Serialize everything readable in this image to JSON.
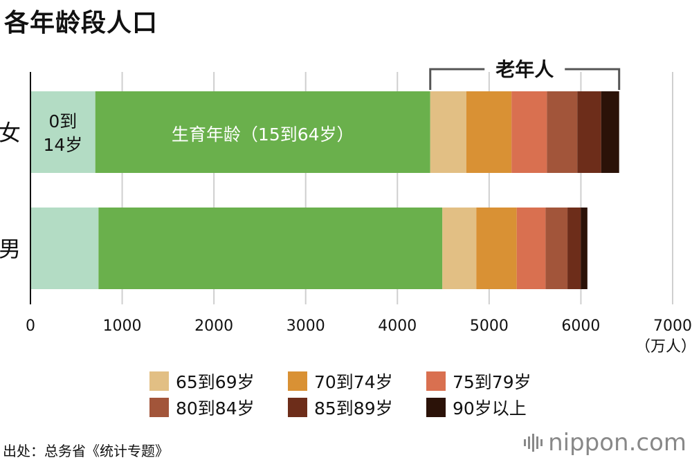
{
  "title": "各年龄段人口",
  "chart_data": {
    "type": "bar",
    "orientation": "horizontal",
    "stacked": true,
    "title": "各年龄段人口",
    "categories": [
      "女",
      "男"
    ],
    "series": [
      {
        "name": "0到14岁",
        "color": "#b3dcc4",
        "values": [
          707,
          742
        ]
      },
      {
        "name": "生育年龄（15到64岁）",
        "color": "#6ab04c",
        "values": [
          3651,
          3748
        ]
      },
      {
        "name": "65到69岁",
        "color": "#e2bf84",
        "values": [
          394,
          370
        ]
      },
      {
        "name": "70到74岁",
        "color": "#d99134",
        "values": [
          492,
          441
        ]
      },
      {
        "name": "75到79岁",
        "color": "#d97050",
        "values": [
          386,
          314
        ]
      },
      {
        "name": "80到84岁",
        "color": "#a2553a",
        "values": [
          331,
          239
        ]
      },
      {
        "name": "85到89岁",
        "color": "#6d2d1a",
        "values": [
          260,
          145
        ]
      },
      {
        "name": "90岁以上",
        "color": "#2b1208",
        "values": [
          196,
          72
        ]
      }
    ],
    "in_bar_labels": {
      "child_line1": "0到",
      "child_line2": "14岁",
      "working": "生育年龄（15到64岁）"
    },
    "bracket_label": "老年人",
    "xlim": [
      0,
      7000
    ],
    "xticks": [
      "0",
      "1000",
      "2000",
      "3000",
      "4000",
      "5000",
      "6000",
      "7000"
    ],
    "xunit": "（万人）",
    "grid": true,
    "legend_position": "bottom"
  },
  "legend": [
    [
      "65到69岁",
      "70到74岁",
      "75到79岁"
    ],
    [
      "80到84岁",
      "85到89岁",
      "90岁以上"
    ]
  ],
  "source": "出处：总务省《统计专题》",
  "brand": "nippon.com"
}
